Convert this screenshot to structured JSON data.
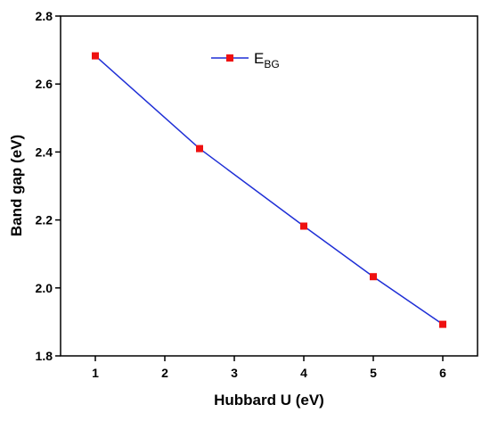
{
  "chart_data": {
    "type": "line",
    "x": [
      1,
      2.5,
      4,
      5,
      6
    ],
    "series": [
      {
        "name": "E",
        "name_subscript": "BG",
        "values": [
          2.683,
          2.41,
          2.182,
          2.033,
          1.893
        ],
        "line_color": "#1f2fd6",
        "marker_color": "#ee1111",
        "marker": "square"
      }
    ],
    "xlabel": "Hubbard U (eV)",
    "ylabel": "Band gap (eV)",
    "xlim": [
      0.5,
      6.5
    ],
    "ylim": [
      1.8,
      2.8
    ],
    "xticks": [
      "1",
      "2",
      "3",
      "4",
      "5",
      "6"
    ],
    "yticks": [
      "1.8",
      "2.0",
      "2.2",
      "2.4",
      "2.6",
      "2.8"
    ],
    "grid": false,
    "legend_position": "top-center"
  }
}
